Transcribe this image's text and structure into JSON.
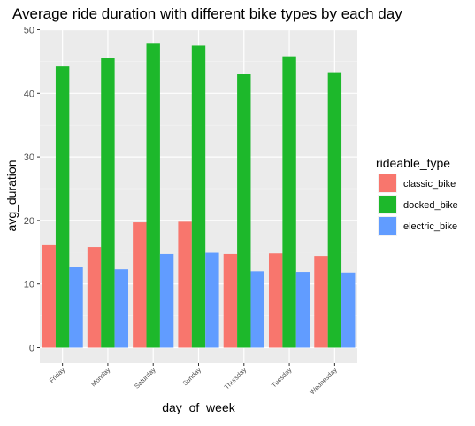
{
  "chart_data": {
    "type": "bar",
    "title": "Average ride duration with different bike types by each day",
    "xlabel": "day_of_week",
    "ylabel": "avg_duration",
    "ylim": [
      0,
      50
    ],
    "yticks": [
      0,
      10,
      20,
      30,
      40,
      50
    ],
    "grid": true,
    "legend_position": "right",
    "legend_title": "rideable_type",
    "categories": [
      "Friday",
      "Monday",
      "Saturday",
      "Sunday",
      "Thursday",
      "Tuesday",
      "Wednesday"
    ],
    "series": [
      {
        "name": "classic_bike",
        "color": "#F8766D",
        "values": [
          16.1,
          15.8,
          19.7,
          19.8,
          14.7,
          14.8,
          14.4
        ]
      },
      {
        "name": "docked_bike",
        "color": "#1DB82B",
        "values": [
          44.2,
          45.6,
          47.8,
          47.5,
          43.0,
          45.8,
          43.3
        ]
      },
      {
        "name": "electric_bike",
        "color": "#619CFF",
        "values": [
          12.7,
          12.3,
          14.7,
          14.9,
          12.0,
          11.9,
          11.8
        ]
      }
    ]
  }
}
